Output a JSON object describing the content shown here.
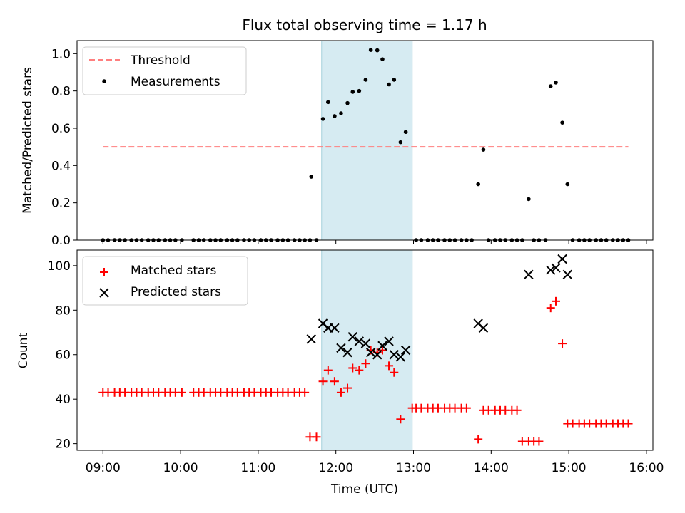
{
  "chart_data": {
    "title": "Flux total observing time = 1.17 h",
    "xlabel": "Time (UTC)",
    "x_ticks": [
      "09:00",
      "10:00",
      "11:00",
      "12:00",
      "13:00",
      "14:00",
      "15:00",
      "16:00"
    ],
    "x_range": [
      "08:40",
      "16:05"
    ],
    "highlight_span": [
      "11:49",
      "12:59"
    ],
    "highlight_color": "#add8e6",
    "panels": [
      {
        "type": "scatter",
        "ylabel": "Matched/Predicted stars",
        "ylim": [
          0,
          1.07
        ],
        "y_ticks": [
          0.0,
          0.2,
          0.4,
          0.6,
          0.8,
          1.0
        ],
        "legend_position": "top-left",
        "threshold": {
          "name": "Threshold",
          "value": 0.5,
          "x_start": "09:00",
          "x_end": "15:46",
          "color": "#ff7f7f"
        },
        "series": [
          {
            "name": "Measurements",
            "marker": "dot",
            "color": "#000000",
            "points": [
              [
                "09:00",
                0
              ],
              [
                "09:04",
                0
              ],
              [
                "09:09",
                0
              ],
              [
                "09:13",
                0
              ],
              [
                "09:17",
                0
              ],
              [
                "09:22",
                0
              ],
              [
                "09:26",
                0
              ],
              [
                "09:30",
                0
              ],
              [
                "09:35",
                0
              ],
              [
                "09:39",
                0
              ],
              [
                "09:43",
                0
              ],
              [
                "09:48",
                0
              ],
              [
                "09:52",
                0
              ],
              [
                "09:56",
                0
              ],
              [
                "10:01",
                0
              ],
              [
                "10:10",
                0
              ],
              [
                "10:14",
                0
              ],
              [
                "10:18",
                0
              ],
              [
                "10:23",
                0
              ],
              [
                "10:27",
                0
              ],
              [
                "10:31",
                0
              ],
              [
                "10:36",
                0
              ],
              [
                "10:40",
                0
              ],
              [
                "10:44",
                0
              ],
              [
                "10:49",
                0
              ],
              [
                "10:53",
                0
              ],
              [
                "10:57",
                0
              ],
              [
                "11:02",
                0
              ],
              [
                "11:06",
                0
              ],
              [
                "11:10",
                0
              ],
              [
                "11:15",
                0
              ],
              [
                "11:19",
                0
              ],
              [
                "11:23",
                0
              ],
              [
                "11:28",
                0
              ],
              [
                "11:32",
                0
              ],
              [
                "11:36",
                0
              ],
              [
                "11:40",
                0
              ],
              [
                "11:41",
                0.34
              ],
              [
                "11:45",
                0
              ],
              [
                "11:50",
                0.65
              ],
              [
                "11:54",
                0.74
              ],
              [
                "11:59",
                0.665
              ],
              [
                "12:04",
                0.68
              ],
              [
                "12:09",
                0.735
              ],
              [
                "12:13",
                0.795
              ],
              [
                "12:18",
                0.8
              ],
              [
                "12:23",
                0.86
              ],
              [
                "12:27",
                1.02
              ],
              [
                "12:32",
                1.018
              ],
              [
                "12:36",
                0.97
              ],
              [
                "12:41",
                0.835
              ],
              [
                "12:45",
                0.86
              ],
              [
                "12:50",
                0.525
              ],
              [
                "12:54",
                0.58
              ],
              [
                "13:02",
                0
              ],
              [
                "13:06",
                0
              ],
              [
                "13:11",
                0
              ],
              [
                "13:15",
                0
              ],
              [
                "13:19",
                0
              ],
              [
                "13:24",
                0
              ],
              [
                "13:28",
                0
              ],
              [
                "13:32",
                0
              ],
              [
                "13:37",
                0
              ],
              [
                "13:41",
                0
              ],
              [
                "13:45",
                0
              ],
              [
                "13:50",
                0.3
              ],
              [
                "13:54",
                0.485
              ],
              [
                "13:58",
                0
              ],
              [
                "14:03",
                0
              ],
              [
                "14:07",
                0
              ],
              [
                "14:11",
                0
              ],
              [
                "14:16",
                0
              ],
              [
                "14:20",
                0
              ],
              [
                "14:24",
                0
              ],
              [
                "14:29",
                0.22
              ],
              [
                "14:33",
                0
              ],
              [
                "14:37",
                0
              ],
              [
                "14:42",
                0
              ],
              [
                "14:46",
                0.825
              ],
              [
                "14:50",
                0.845
              ],
              [
                "14:55",
                0.63
              ],
              [
                "14:59",
                0.3
              ],
              [
                "15:03",
                0
              ],
              [
                "15:08",
                0
              ],
              [
                "15:12",
                0
              ],
              [
                "15:16",
                0
              ],
              [
                "15:21",
                0
              ],
              [
                "15:25",
                0
              ],
              [
                "15:29",
                0
              ],
              [
                "15:34",
                0
              ],
              [
                "15:38",
                0
              ],
              [
                "15:42",
                0
              ],
              [
                "15:46",
                0
              ]
            ]
          }
        ]
      },
      {
        "type": "scatter",
        "ylabel": "Count",
        "ylim": [
          17,
          107
        ],
        "y_ticks": [
          20,
          40,
          60,
          80,
          100
        ],
        "legend_position": "top-left",
        "series": [
          {
            "name": "Matched stars",
            "marker": "plus",
            "color": "#ff0000",
            "points": [
              [
                "09:00",
                43
              ],
              [
                "09:04",
                43
              ],
              [
                "09:09",
                43
              ],
              [
                "09:13",
                43
              ],
              [
                "09:17",
                43
              ],
              [
                "09:22",
                43
              ],
              [
                "09:26",
                43
              ],
              [
                "09:30",
                43
              ],
              [
                "09:35",
                43
              ],
              [
                "09:39",
                43
              ],
              [
                "09:43",
                43
              ],
              [
                "09:48",
                43
              ],
              [
                "09:52",
                43
              ],
              [
                "09:56",
                43
              ],
              [
                "10:01",
                43
              ],
              [
                "10:10",
                43
              ],
              [
                "10:14",
                43
              ],
              [
                "10:18",
                43
              ],
              [
                "10:23",
                43
              ],
              [
                "10:27",
                43
              ],
              [
                "10:31",
                43
              ],
              [
                "10:36",
                43
              ],
              [
                "10:40",
                43
              ],
              [
                "10:44",
                43
              ],
              [
                "10:49",
                43
              ],
              [
                "10:53",
                43
              ],
              [
                "10:57",
                43
              ],
              [
                "11:02",
                43
              ],
              [
                "11:06",
                43
              ],
              [
                "11:10",
                43
              ],
              [
                "11:15",
                43
              ],
              [
                "11:19",
                43
              ],
              [
                "11:23",
                43
              ],
              [
                "11:28",
                43
              ],
              [
                "11:32",
                43
              ],
              [
                "11:36",
                43
              ],
              [
                "11:40",
                23
              ],
              [
                "11:45",
                23
              ],
              [
                "11:50",
                48
              ],
              [
                "11:54",
                53
              ],
              [
                "11:59",
                48
              ],
              [
                "12:04",
                43
              ],
              [
                "12:09",
                45
              ],
              [
                "12:13",
                54
              ],
              [
                "12:18",
                53
              ],
              [
                "12:23",
                56
              ],
              [
                "12:27",
                62
              ],
              [
                "12:32",
                61
              ],
              [
                "12:36",
                62
              ],
              [
                "12:41",
                55
              ],
              [
                "12:45",
                52
              ],
              [
                "12:50",
                31
              ],
              [
                "12:59",
                36
              ],
              [
                "13:02",
                36
              ],
              [
                "13:06",
                36
              ],
              [
                "13:11",
                36
              ],
              [
                "13:15",
                36
              ],
              [
                "13:19",
                36
              ],
              [
                "13:24",
                36
              ],
              [
                "13:28",
                36
              ],
              [
                "13:32",
                36
              ],
              [
                "13:37",
                36
              ],
              [
                "13:41",
                36
              ],
              [
                "13:50",
                22
              ],
              [
                "13:54",
                35
              ],
              [
                "13:58",
                35
              ],
              [
                "14:03",
                35
              ],
              [
                "14:07",
                35
              ],
              [
                "14:11",
                35
              ],
              [
                "14:16",
                35
              ],
              [
                "14:20",
                35
              ],
              [
                "14:24",
                21
              ],
              [
                "14:29",
                21
              ],
              [
                "14:33",
                21
              ],
              [
                "14:37",
                21
              ],
              [
                "14:46",
                81
              ],
              [
                "14:50",
                84
              ],
              [
                "14:55",
                65
              ],
              [
                "14:59",
                29
              ],
              [
                "15:03",
                29
              ],
              [
                "15:08",
                29
              ],
              [
                "15:12",
                29
              ],
              [
                "15:16",
                29
              ],
              [
                "15:21",
                29
              ],
              [
                "15:25",
                29
              ],
              [
                "15:29",
                29
              ],
              [
                "15:34",
                29
              ],
              [
                "15:38",
                29
              ],
              [
                "15:42",
                29
              ],
              [
                "15:46",
                29
              ]
            ]
          },
          {
            "name": "Predicted stars",
            "marker": "x",
            "color": "#000000",
            "points": [
              [
                "11:41",
                67
              ],
              [
                "11:50",
                74
              ],
              [
                "11:54",
                72
              ],
              [
                "11:59",
                72
              ],
              [
                "12:04",
                63
              ],
              [
                "12:09",
                61
              ],
              [
                "12:13",
                68
              ],
              [
                "12:18",
                66
              ],
              [
                "12:23",
                65
              ],
              [
                "12:27",
                61
              ],
              [
                "12:32",
                60
              ],
              [
                "12:36",
                64
              ],
              [
                "12:41",
                66
              ],
              [
                "12:45",
                60
              ],
              [
                "12:50",
                59
              ],
              [
                "12:54",
                62
              ],
              [
                "13:50",
                74
              ],
              [
                "13:54",
                72
              ],
              [
                "14:29",
                96
              ],
              [
                "14:46",
                98
              ],
              [
                "14:50",
                99
              ],
              [
                "14:55",
                103
              ],
              [
                "14:59",
                96
              ]
            ]
          }
        ]
      }
    ]
  }
}
